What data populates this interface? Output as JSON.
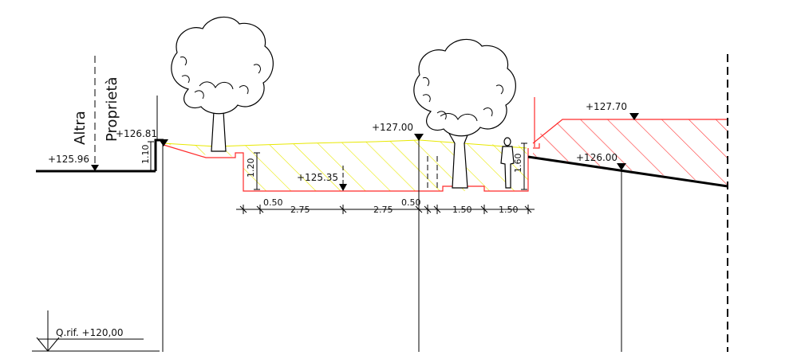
{
  "labels": {
    "altra": "Altra",
    "proprieta": "Proprietà",
    "q_rif": "Q.rif. +120,00"
  },
  "elevations": {
    "e_125_96": "+125.96",
    "e_126_81": "+126.81",
    "e_127_00": "+127.00",
    "e_125_35": "+125.35",
    "e_127_70": "+127.70",
    "e_126_00": "+126.00"
  },
  "dimensions": {
    "h_1_10": "1.10",
    "h_1_20": "1.20",
    "h_1_60": "1.60",
    "w_0_50_a": "0.50",
    "w_2_75_a": "2.75",
    "w_2_75_b": "2.75",
    "w_0_50_b": "0.50",
    "w_1_50_a": "1.50",
    "w_1_50_b": "1.50"
  },
  "colors": {
    "hatch_fill": "#e8e800",
    "embankment": "#ff2a2a",
    "line": "#000000"
  }
}
